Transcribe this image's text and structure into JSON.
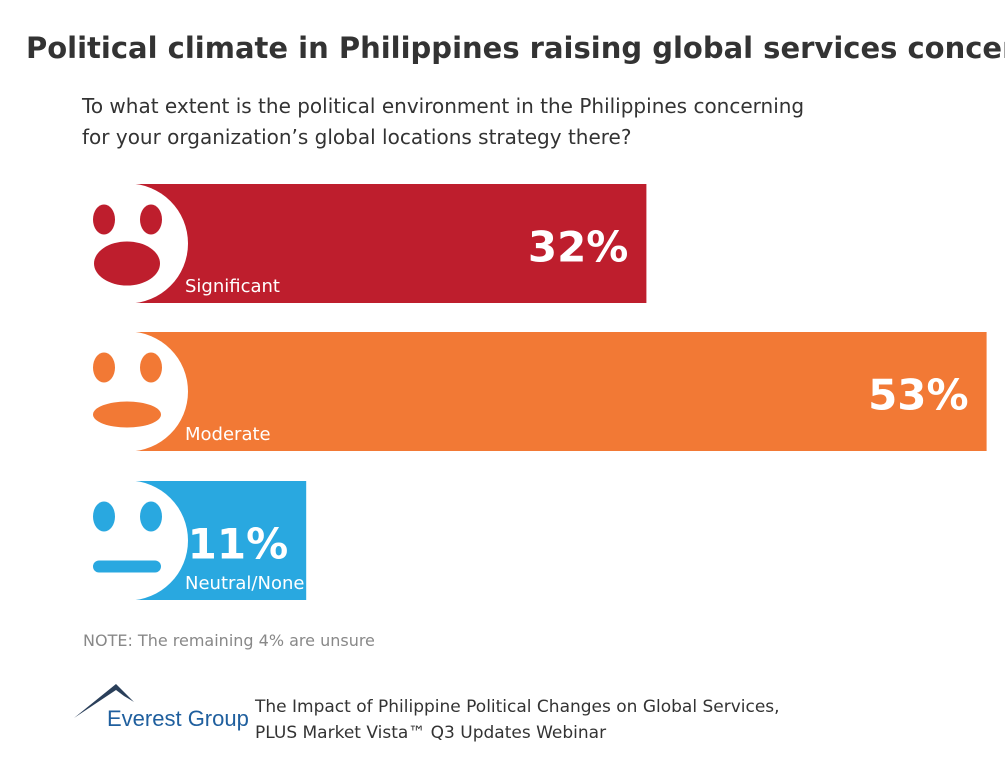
{
  "chart_data": {
    "type": "hbar",
    "title": "Political climate in Philippines raising global services concerns",
    "subtitle": [
      "To what extent is the political environment in the Philippines concerning",
      "for your organization’s global locations strategy there?"
    ],
    "categories": [
      "Significant",
      "Moderate",
      "Neutral/None"
    ],
    "values": [
      32,
      53,
      11
    ],
    "value_labels": [
      "32%",
      "53%",
      "11%"
    ],
    "colors": [
      "#be1e2d",
      "#f27935",
      "#29a8e0"
    ],
    "note": "NOTE: The remaining 4% are unsure",
    "logo": "Everest Group",
    "source": [
      "The Impact of Philippine Political Changes on Global Services,",
      "PLUS Market Vista™ Q3 Updates Webinar"
    ]
  }
}
